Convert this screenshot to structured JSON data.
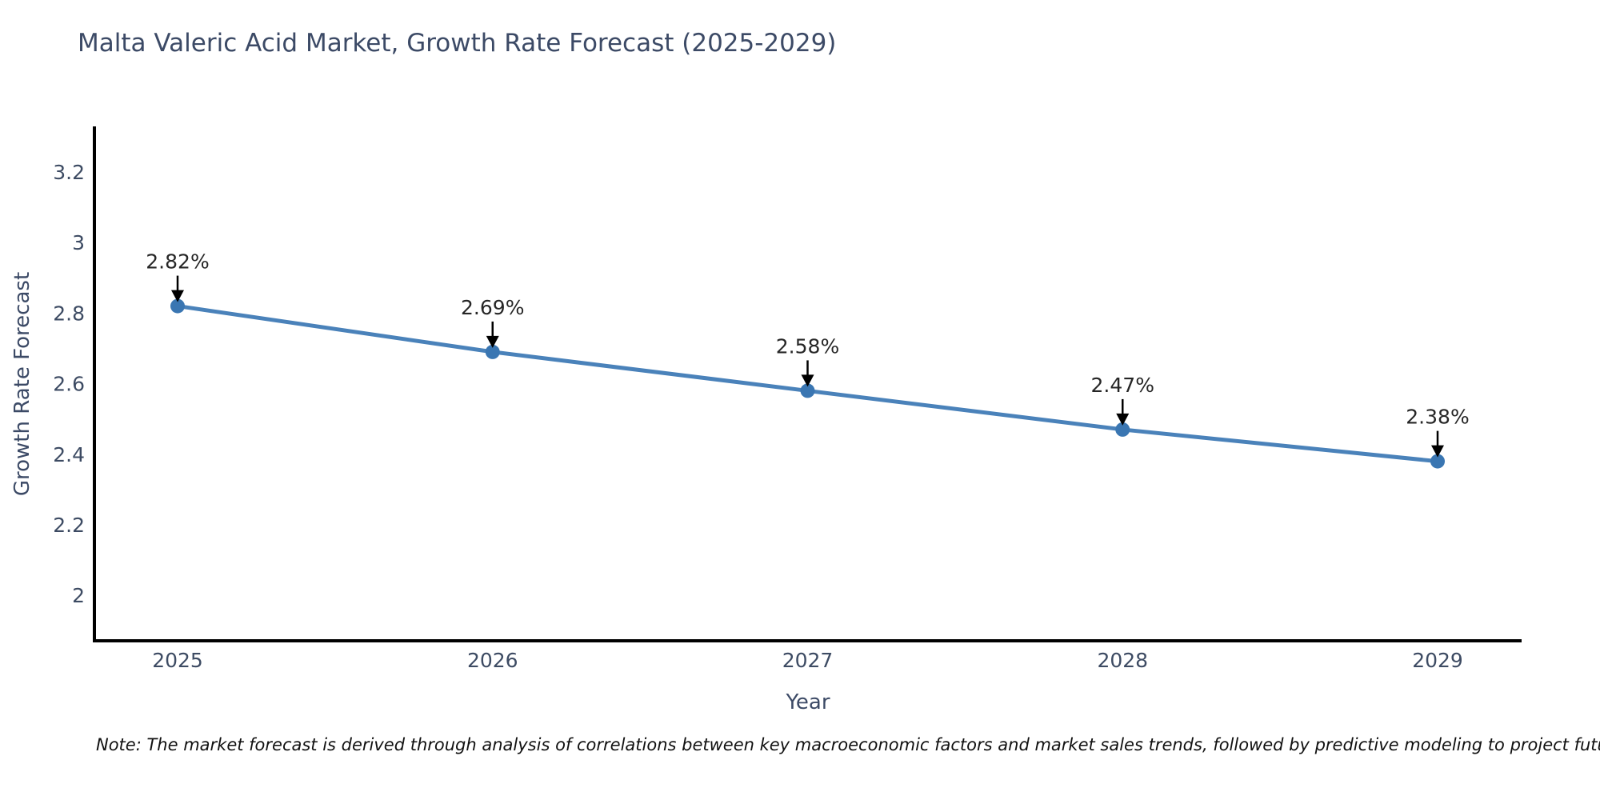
{
  "title": "Malta Valeric Acid Market, Growth Rate Forecast (2025-2029)",
  "note": "Note: The market forecast is derived through analysis of correlations between key macroeconomic factors and market sales trends, followed by predictive modeling to project future sales",
  "chart_data": {
    "type": "line",
    "title": "Malta Valeric Acid Market, Growth Rate Forecast (2025-2029)",
    "xlabel": "Year",
    "ylabel": "Growth Rate Forecast",
    "x": [
      2025,
      2026,
      2027,
      2028,
      2029
    ],
    "values": [
      2.82,
      2.69,
      2.58,
      2.47,
      2.38
    ],
    "point_labels": [
      "2.82%",
      "2.69%",
      "2.58%",
      "2.47%",
      "2.38%"
    ],
    "xtick_labels": [
      "2025",
      "2026",
      "2027",
      "2028",
      "2029"
    ],
    "yticks": [
      2,
      2.2,
      2.4,
      2.6,
      2.8,
      3,
      3.2
    ],
    "ytick_labels": [
      "2",
      "2.2",
      "2.4",
      "2.6",
      "2.8",
      "3",
      "3.2"
    ],
    "ylim": [
      1.87,
      3.33
    ],
    "xlim": [
      2024.73,
      2029.27
    ],
    "grid": false,
    "legend": null,
    "colors": {
      "line": "#4a82ba",
      "marker": "#3a76b2",
      "axis": "#000000",
      "tick_label": "#3d4b63",
      "annotation": "#262626",
      "annotation_arrow": "#000000"
    }
  }
}
